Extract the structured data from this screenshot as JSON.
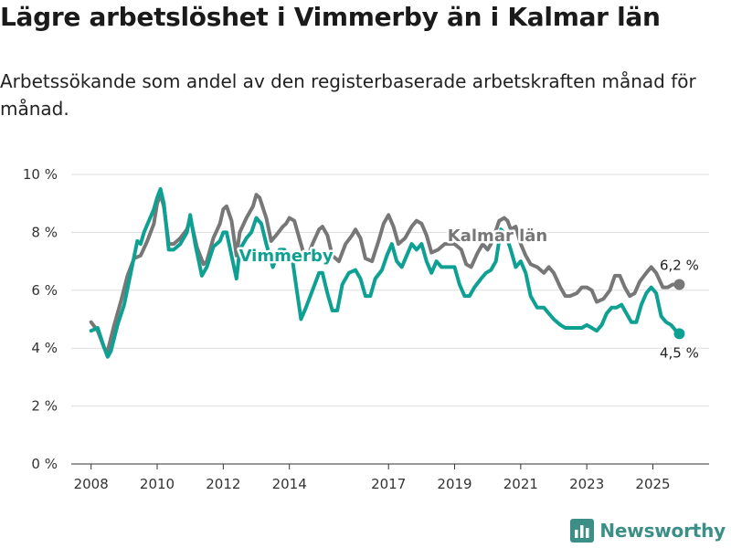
{
  "colors": {
    "vimmerby": "#0ea193",
    "kalmar": "#777777",
    "grid": "#dddddd",
    "axis": "#333333",
    "brand": "#3b8f86"
  },
  "brand": {
    "name": "Newsworthy",
    "icon": "bar-chart-icon"
  },
  "chart_data": {
    "type": "line",
    "title": "Lägre arbetslöshet i Vimmerby än i Kalmar län",
    "subtitle": "Arbetssökande som andel av den registerbaserade arbetskraften månad för månad.",
    "ylim": [
      0,
      10
    ],
    "xlim": [
      2007.4,
      2026.7
    ],
    "y_ticks": [
      {
        "value": 0,
        "label": "0 %"
      },
      {
        "value": 2,
        "label": "2 %"
      },
      {
        "value": 4,
        "label": "4 %"
      },
      {
        "value": 6,
        "label": "6 %"
      },
      {
        "value": 8,
        "label": "8 %"
      },
      {
        "value": 10,
        "label": "10 %"
      }
    ],
    "x_ticks": [
      {
        "value": 2008,
        "label": "2008"
      },
      {
        "value": 2010,
        "label": "2010"
      },
      {
        "value": 2012,
        "label": "2012"
      },
      {
        "value": 2014,
        "label": "2014"
      },
      {
        "value": 2017,
        "label": "2017"
      },
      {
        "value": 2019,
        "label": "2019"
      },
      {
        "value": 2021,
        "label": "2021"
      },
      {
        "value": 2023,
        "label": "2023"
      },
      {
        "value": 2025,
        "label": "2025"
      }
    ],
    "series": [
      {
        "name": "Kalmar län",
        "label_at": {
          "x": 2020.3,
          "y": 7.7
        },
        "end_label": "6,2 %",
        "points": [
          [
            2008.0,
            4.9
          ],
          [
            2008.2,
            4.6
          ],
          [
            2008.4,
            4.0
          ],
          [
            2008.5,
            3.9
          ],
          [
            2008.7,
            4.8
          ],
          [
            2008.9,
            5.6
          ],
          [
            2009.1,
            6.5
          ],
          [
            2009.3,
            7.1
          ],
          [
            2009.5,
            7.2
          ],
          [
            2009.7,
            7.7
          ],
          [
            2009.9,
            8.3
          ],
          [
            2010.0,
            9.0
          ],
          [
            2010.1,
            9.3
          ],
          [
            2010.2,
            8.9
          ],
          [
            2010.35,
            7.6
          ],
          [
            2010.5,
            7.6
          ],
          [
            2010.7,
            7.8
          ],
          [
            2010.9,
            8.1
          ],
          [
            2011.0,
            8.5
          ],
          [
            2011.2,
            7.5
          ],
          [
            2011.4,
            6.9
          ],
          [
            2011.5,
            7.0
          ],
          [
            2011.7,
            7.8
          ],
          [
            2011.9,
            8.3
          ],
          [
            2012.0,
            8.8
          ],
          [
            2012.1,
            8.9
          ],
          [
            2012.25,
            8.4
          ],
          [
            2012.4,
            7.2
          ],
          [
            2012.5,
            8.0
          ],
          [
            2012.7,
            8.5
          ],
          [
            2012.9,
            8.9
          ],
          [
            2013.0,
            9.3
          ],
          [
            2013.1,
            9.2
          ],
          [
            2013.3,
            8.5
          ],
          [
            2013.45,
            7.7
          ],
          [
            2013.6,
            7.9
          ],
          [
            2013.8,
            8.2
          ],
          [
            2013.9,
            8.3
          ],
          [
            2014.0,
            8.5
          ],
          [
            2014.15,
            8.4
          ],
          [
            2014.3,
            7.8
          ],
          [
            2014.5,
            7.0
          ],
          [
            2014.7,
            7.6
          ],
          [
            2014.9,
            8.1
          ],
          [
            2015.0,
            8.2
          ],
          [
            2015.15,
            7.9
          ],
          [
            2015.3,
            7.2
          ],
          [
            2015.5,
            7.0
          ],
          [
            2015.7,
            7.6
          ],
          [
            2015.9,
            7.9
          ],
          [
            2016.0,
            8.1
          ],
          [
            2016.15,
            7.8
          ],
          [
            2016.3,
            7.1
          ],
          [
            2016.5,
            7.0
          ],
          [
            2016.7,
            7.7
          ],
          [
            2016.85,
            8.3
          ],
          [
            2017.0,
            8.6
          ],
          [
            2017.15,
            8.2
          ],
          [
            2017.3,
            7.6
          ],
          [
            2017.5,
            7.8
          ],
          [
            2017.7,
            8.2
          ],
          [
            2017.85,
            8.4
          ],
          [
            2018.0,
            8.3
          ],
          [
            2018.15,
            7.9
          ],
          [
            2018.3,
            7.3
          ],
          [
            2018.5,
            7.4
          ],
          [
            2018.7,
            7.6
          ],
          [
            2018.9,
            7.6
          ],
          [
            2019.0,
            7.6
          ],
          [
            2019.2,
            7.4
          ],
          [
            2019.35,
            6.9
          ],
          [
            2019.5,
            6.8
          ],
          [
            2019.7,
            7.3
          ],
          [
            2019.85,
            7.6
          ],
          [
            2020.0,
            7.4
          ],
          [
            2020.1,
            7.6
          ],
          [
            2020.2,
            7.9
          ],
          [
            2020.35,
            8.4
          ],
          [
            2020.5,
            8.5
          ],
          [
            2020.6,
            8.4
          ],
          [
            2020.7,
            8.1
          ],
          [
            2020.85,
            8.2
          ],
          [
            2021.0,
            7.6
          ],
          [
            2021.15,
            7.2
          ],
          [
            2021.3,
            6.9
          ],
          [
            2021.5,
            6.8
          ],
          [
            2021.7,
            6.6
          ],
          [
            2021.85,
            6.8
          ],
          [
            2022.0,
            6.6
          ],
          [
            2022.2,
            6.1
          ],
          [
            2022.35,
            5.8
          ],
          [
            2022.5,
            5.8
          ],
          [
            2022.7,
            5.9
          ],
          [
            2022.85,
            6.1
          ],
          [
            2023.0,
            6.1
          ],
          [
            2023.15,
            6.0
          ],
          [
            2023.3,
            5.6
          ],
          [
            2023.5,
            5.7
          ],
          [
            2023.7,
            6.0
          ],
          [
            2023.85,
            6.5
          ],
          [
            2024.0,
            6.5
          ],
          [
            2024.15,
            6.1
          ],
          [
            2024.3,
            5.8
          ],
          [
            2024.45,
            5.9
          ],
          [
            2024.6,
            6.3
          ],
          [
            2024.8,
            6.6
          ],
          [
            2024.95,
            6.8
          ],
          [
            2025.1,
            6.6
          ],
          [
            2025.3,
            6.1
          ],
          [
            2025.45,
            6.1
          ],
          [
            2025.6,
            6.2
          ],
          [
            2025.8,
            6.2
          ]
        ]
      },
      {
        "name": "Vimmerby",
        "label_at": {
          "x": 2013.9,
          "y": 7.0
        },
        "end_label": "4,5 %",
        "points": [
          [
            2008.0,
            4.6
          ],
          [
            2008.2,
            4.7
          ],
          [
            2008.4,
            4.0
          ],
          [
            2008.5,
            3.7
          ],
          [
            2008.6,
            3.9
          ],
          [
            2008.8,
            4.8
          ],
          [
            2009.0,
            5.5
          ],
          [
            2009.2,
            6.6
          ],
          [
            2009.4,
            7.7
          ],
          [
            2009.5,
            7.6
          ],
          [
            2009.6,
            8.0
          ],
          [
            2009.75,
            8.4
          ],
          [
            2009.9,
            8.8
          ],
          [
            2010.0,
            9.2
          ],
          [
            2010.1,
            9.5
          ],
          [
            2010.2,
            9.0
          ],
          [
            2010.35,
            7.4
          ],
          [
            2010.5,
            7.4
          ],
          [
            2010.7,
            7.6
          ],
          [
            2010.9,
            8.0
          ],
          [
            2011.0,
            8.6
          ],
          [
            2011.15,
            7.6
          ],
          [
            2011.35,
            6.5
          ],
          [
            2011.5,
            6.8
          ],
          [
            2011.7,
            7.5
          ],
          [
            2011.9,
            7.7
          ],
          [
            2012.0,
            8.0
          ],
          [
            2012.1,
            8.0
          ],
          [
            2012.25,
            7.2
          ],
          [
            2012.4,
            6.4
          ],
          [
            2012.5,
            7.4
          ],
          [
            2012.7,
            7.8
          ],
          [
            2012.85,
            8.0
          ],
          [
            2013.0,
            8.5
          ],
          [
            2013.15,
            8.3
          ],
          [
            2013.3,
            7.6
          ],
          [
            2013.5,
            6.8
          ],
          [
            2013.7,
            7.4
          ],
          [
            2013.85,
            7.4
          ],
          [
            2014.0,
            7.2
          ],
          [
            2014.1,
            7.0
          ],
          [
            2014.2,
            6.2
          ],
          [
            2014.35,
            5.0
          ],
          [
            2014.5,
            5.4
          ],
          [
            2014.7,
            6.0
          ],
          [
            2014.9,
            6.6
          ],
          [
            2015.0,
            6.6
          ],
          [
            2015.15,
            5.9
          ],
          [
            2015.3,
            5.3
          ],
          [
            2015.45,
            5.3
          ],
          [
            2015.6,
            6.2
          ],
          [
            2015.8,
            6.6
          ],
          [
            2016.0,
            6.7
          ],
          [
            2016.15,
            6.4
          ],
          [
            2016.3,
            5.8
          ],
          [
            2016.45,
            5.8
          ],
          [
            2016.6,
            6.4
          ],
          [
            2016.8,
            6.7
          ],
          [
            2016.95,
            7.2
          ],
          [
            2017.1,
            7.6
          ],
          [
            2017.25,
            7.0
          ],
          [
            2017.4,
            6.8
          ],
          [
            2017.55,
            7.2
          ],
          [
            2017.7,
            7.6
          ],
          [
            2017.85,
            7.4
          ],
          [
            2018.0,
            7.6
          ],
          [
            2018.15,
            7.0
          ],
          [
            2018.3,
            6.6
          ],
          [
            2018.45,
            7.0
          ],
          [
            2018.6,
            6.8
          ],
          [
            2018.8,
            6.8
          ],
          [
            2019.0,
            6.8
          ],
          [
            2019.15,
            6.2
          ],
          [
            2019.3,
            5.8
          ],
          [
            2019.45,
            5.8
          ],
          [
            2019.6,
            6.1
          ],
          [
            2019.8,
            6.4
          ],
          [
            2019.95,
            6.6
          ],
          [
            2020.1,
            6.7
          ],
          [
            2020.25,
            7.0
          ],
          [
            2020.4,
            8.1
          ],
          [
            2020.55,
            7.9
          ],
          [
            2020.7,
            7.4
          ],
          [
            2020.85,
            6.8
          ],
          [
            2021.0,
            7.0
          ],
          [
            2021.15,
            6.6
          ],
          [
            2021.3,
            5.8
          ],
          [
            2021.5,
            5.4
          ],
          [
            2021.7,
            5.4
          ],
          [
            2021.85,
            5.2
          ],
          [
            2022.0,
            5.0
          ],
          [
            2022.2,
            4.8
          ],
          [
            2022.35,
            4.7
          ],
          [
            2022.5,
            4.7
          ],
          [
            2022.7,
            4.7
          ],
          [
            2022.85,
            4.7
          ],
          [
            2023.0,
            4.8
          ],
          [
            2023.15,
            4.7
          ],
          [
            2023.3,
            4.6
          ],
          [
            2023.45,
            4.8
          ],
          [
            2023.6,
            5.2
          ],
          [
            2023.75,
            5.4
          ],
          [
            2023.9,
            5.4
          ],
          [
            2024.05,
            5.5
          ],
          [
            2024.2,
            5.2
          ],
          [
            2024.35,
            4.9
          ],
          [
            2024.5,
            4.9
          ],
          [
            2024.65,
            5.5
          ],
          [
            2024.8,
            5.9
          ],
          [
            2024.95,
            6.1
          ],
          [
            2025.1,
            5.9
          ],
          [
            2025.25,
            5.1
          ],
          [
            2025.4,
            4.9
          ],
          [
            2025.55,
            4.8
          ],
          [
            2025.7,
            4.6
          ],
          [
            2025.8,
            4.5
          ]
        ]
      }
    ]
  }
}
